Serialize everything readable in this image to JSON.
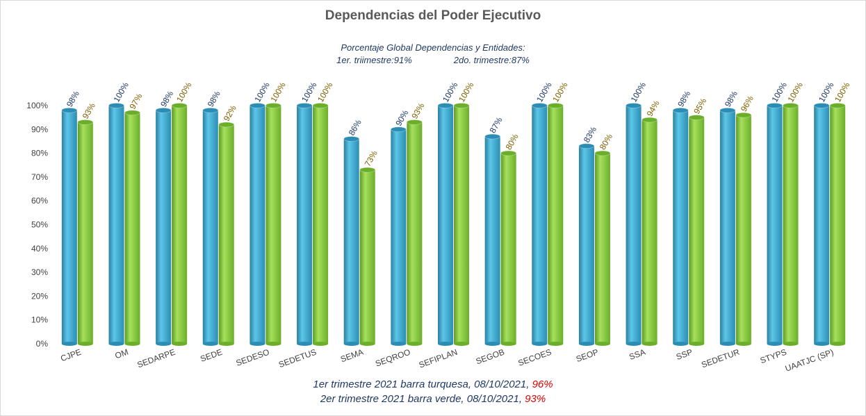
{
  "chart_data": {
    "type": "bar",
    "title": "Dependencias del Poder Ejecutivo",
    "subtitle_line1": "Porcentaje Global  Dependencias y Entidades:",
    "subtitle_q1": "1er. triimestre:91%",
    "subtitle_q2": "2do. trimestre:87%",
    "categories": [
      "CJPE",
      "OM",
      "SEDARPE",
      "SEDE",
      "SEDESO",
      "SEDETUS",
      "SEMA",
      "SEQROO",
      "SEFIPLAN",
      "SEGOB",
      "SECOES",
      "SEOP",
      "SSA",
      "SSP",
      "SEDETUR",
      "STYPS",
      "UAATJC (SP)"
    ],
    "series": [
      {
        "values": [
          98,
          100,
          98,
          98,
          100,
          100,
          86,
          90,
          100,
          87,
          100,
          83,
          100,
          98,
          98,
          100,
          100
        ],
        "color": "#3aa6cc"
      },
      {
        "values": [
          93,
          97,
          100,
          92,
          100,
          100,
          73,
          93,
          100,
          80,
          100,
          80,
          94,
          95,
          96,
          100,
          100
        ],
        "color": "#86c93f"
      }
    ],
    "value_labels": {
      "series_0": [
        "98%",
        "100%",
        "98%",
        "98%",
        "100%",
        "100%",
        "86%",
        "90%",
        "100%",
        "87%",
        "100%",
        "83%",
        "100%",
        "98%",
        "98%",
        "100%",
        "100%"
      ],
      "series_1": [
        "93%",
        "97%",
        "100%",
        "92%",
        "100%",
        "100%",
        "73%",
        "93%",
        "100%",
        "80%",
        "100%",
        "80%",
        "94%",
        "95%",
        "96%",
        "100%",
        "100%"
      ]
    },
    "yticks": [
      "0%",
      "10%",
      "20%",
      "30%",
      "40%",
      "50%",
      "60%",
      "70%",
      "80%",
      "90%",
      "100%"
    ],
    "ylim": [
      0,
      100
    ],
    "grid": false,
    "legend": "none"
  },
  "footer": {
    "line1_text": "1er trimestre  2021 barra turquesa,   08/10/2021, ",
    "line1_value": "96%",
    "line2_text": "2er trimestre  2021 barra verde,   08/10/2021, ",
    "line2_value": "93%"
  },
  "colors": {
    "highlight": "#e00000"
  }
}
